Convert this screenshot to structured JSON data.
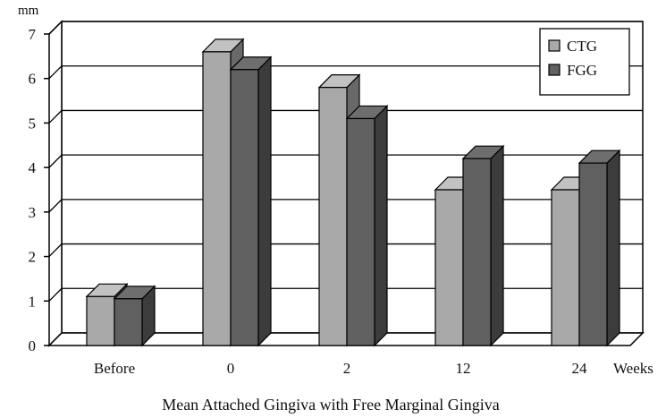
{
  "chart_data": {
    "type": "bar",
    "subtype": "3d-clustered",
    "title": "",
    "xlabel": "Mean Attached Gingiva with Free Marginal Gingiva",
    "x_unit": "Weeks",
    "ylabel": "mm",
    "ylim": [
      0,
      7
    ],
    "yticks": [
      "0",
      "1",
      "2",
      "3",
      "4",
      "5",
      "6",
      "7"
    ],
    "categories": [
      "Before",
      "0",
      "2",
      "12",
      "24"
    ],
    "series": [
      {
        "name": "CTG",
        "color": "#a9a9a9",
        "values": [
          1.1,
          6.6,
          5.8,
          3.5,
          3.5
        ]
      },
      {
        "name": "FGG",
        "color": "#606060",
        "values": [
          1.05,
          6.2,
          5.1,
          4.2,
          4.1
        ]
      }
    ],
    "grid": true,
    "legend_position": "top-right"
  }
}
